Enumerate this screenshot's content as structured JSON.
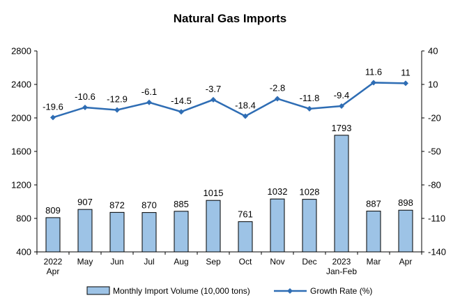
{
  "chart_data": {
    "type": "bar",
    "title": "Natural Gas Imports",
    "categories": [
      [
        "2022",
        "Apr"
      ],
      [
        "May"
      ],
      [
        "Jun"
      ],
      [
        "Jul"
      ],
      [
        "Aug"
      ],
      [
        "Sep"
      ],
      [
        "Oct"
      ],
      [
        "Nov"
      ],
      [
        "Dec"
      ],
      [
        "2023",
        "Jan-Feb"
      ],
      [
        "Mar"
      ],
      [
        "Apr"
      ]
    ],
    "series": [
      {
        "name": "Monthly Import Volume (10,000 tons)",
        "type": "bar",
        "axis": "left",
        "color": "#9DC3E6",
        "edge_color": "#000000",
        "values": [
          809,
          907,
          872,
          870,
          885,
          1015,
          761,
          1032,
          1028,
          1793,
          887,
          898
        ]
      },
      {
        "name": "Growth Rate (%)",
        "type": "line",
        "axis": "right",
        "color": "#2E6DB4",
        "marker": "diamond",
        "values": [
          -19.6,
          -10.6,
          -12.9,
          -6.1,
          -14.5,
          -3.7,
          -18.4,
          -2.8,
          -11.8,
          -9.4,
          11.6,
          11.0
        ]
      }
    ],
    "y_left": {
      "ylim": [
        400,
        2800
      ],
      "ticks": [
        400,
        800,
        1200,
        1600,
        2000,
        2400,
        2800
      ]
    },
    "y_right": {
      "ylim": [
        -140,
        40
      ],
      "ticks": [
        -140,
        -110,
        -80,
        -50,
        -20,
        10,
        40
      ]
    },
    "grid": false,
    "legend": "bottom"
  }
}
